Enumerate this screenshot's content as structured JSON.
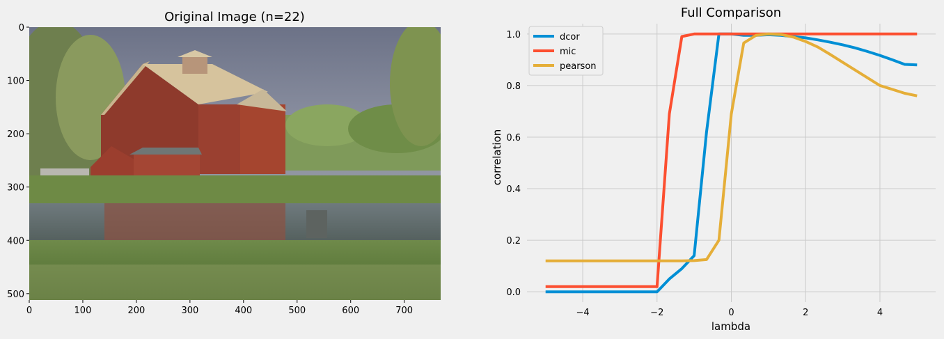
{
  "chart_data": [
    {
      "type": "image",
      "title": "Original Image (n=22)",
      "image_description": "photo of a red barn with silo reflected in a pond, trees and grass in foreground",
      "xlim": [
        0,
        768
      ],
      "ylim": [
        512,
        0
      ],
      "xticks": [
        0,
        100,
        200,
        300,
        400,
        500,
        600,
        700
      ],
      "yticks": [
        0,
        100,
        200,
        300,
        400,
        500
      ],
      "grid": false
    },
    {
      "type": "line",
      "title": "Full Comparison",
      "xlabel": "lambda",
      "ylabel": "correlation",
      "xlim": [
        -5.5,
        5.5
      ],
      "ylim": [
        -0.04,
        1.04
      ],
      "xticks": [
        -4,
        -2,
        0,
        2,
        4
      ],
      "yticks": [
        0.0,
        0.2,
        0.4,
        0.6,
        0.8,
        1.0
      ],
      "grid": true,
      "legend": "top-left",
      "x": [
        -5.0,
        -4.667,
        -4.333,
        -4.0,
        -3.667,
        -3.333,
        -3.0,
        -2.667,
        -2.333,
        -2.0,
        -1.667,
        -1.333,
        -1.0,
        -0.667,
        -0.333,
        0.0,
        0.333,
        0.667,
        1.0,
        1.333,
        1.667,
        2.0,
        2.333,
        2.667,
        3.0,
        3.333,
        3.667,
        4.0,
        4.333,
        4.667,
        5.0
      ],
      "series": [
        {
          "name": "dcor",
          "color": "#008fd5",
          "values": [
            0.0,
            0.0,
            0.0,
            0.0,
            0.0,
            0.0,
            0.0,
            0.0,
            0.0,
            0.0,
            0.05,
            0.09,
            0.14,
            0.62,
            1.0,
            1.0,
            0.995,
            0.995,
            0.997,
            0.995,
            0.99,
            0.985,
            0.977,
            0.968,
            0.958,
            0.946,
            0.932,
            0.917,
            0.9,
            0.882,
            0.88
          ]
        },
        {
          "name": "mic",
          "color": "#fc4f30",
          "values": [
            0.02,
            0.02,
            0.02,
            0.02,
            0.02,
            0.02,
            0.02,
            0.02,
            0.02,
            0.02,
            0.69,
            0.99,
            1.0,
            1.0,
            1.0,
            1.0,
            1.0,
            1.0,
            1.0,
            1.0,
            1.0,
            1.0,
            1.0,
            1.0,
            1.0,
            1.0,
            1.0,
            1.0,
            1.0,
            1.0,
            1.0
          ]
        },
        {
          "name": "pearson",
          "color": "#e5ae38",
          "values": [
            0.12,
            0.12,
            0.12,
            0.12,
            0.12,
            0.12,
            0.12,
            0.12,
            0.12,
            0.12,
            0.12,
            0.12,
            0.121,
            0.125,
            0.2,
            0.69,
            0.965,
            0.995,
            1.0,
            0.998,
            0.988,
            0.971,
            0.949,
            0.92,
            0.89,
            0.86,
            0.83,
            0.8,
            0.785,
            0.77,
            0.76
          ]
        }
      ]
    }
  ]
}
